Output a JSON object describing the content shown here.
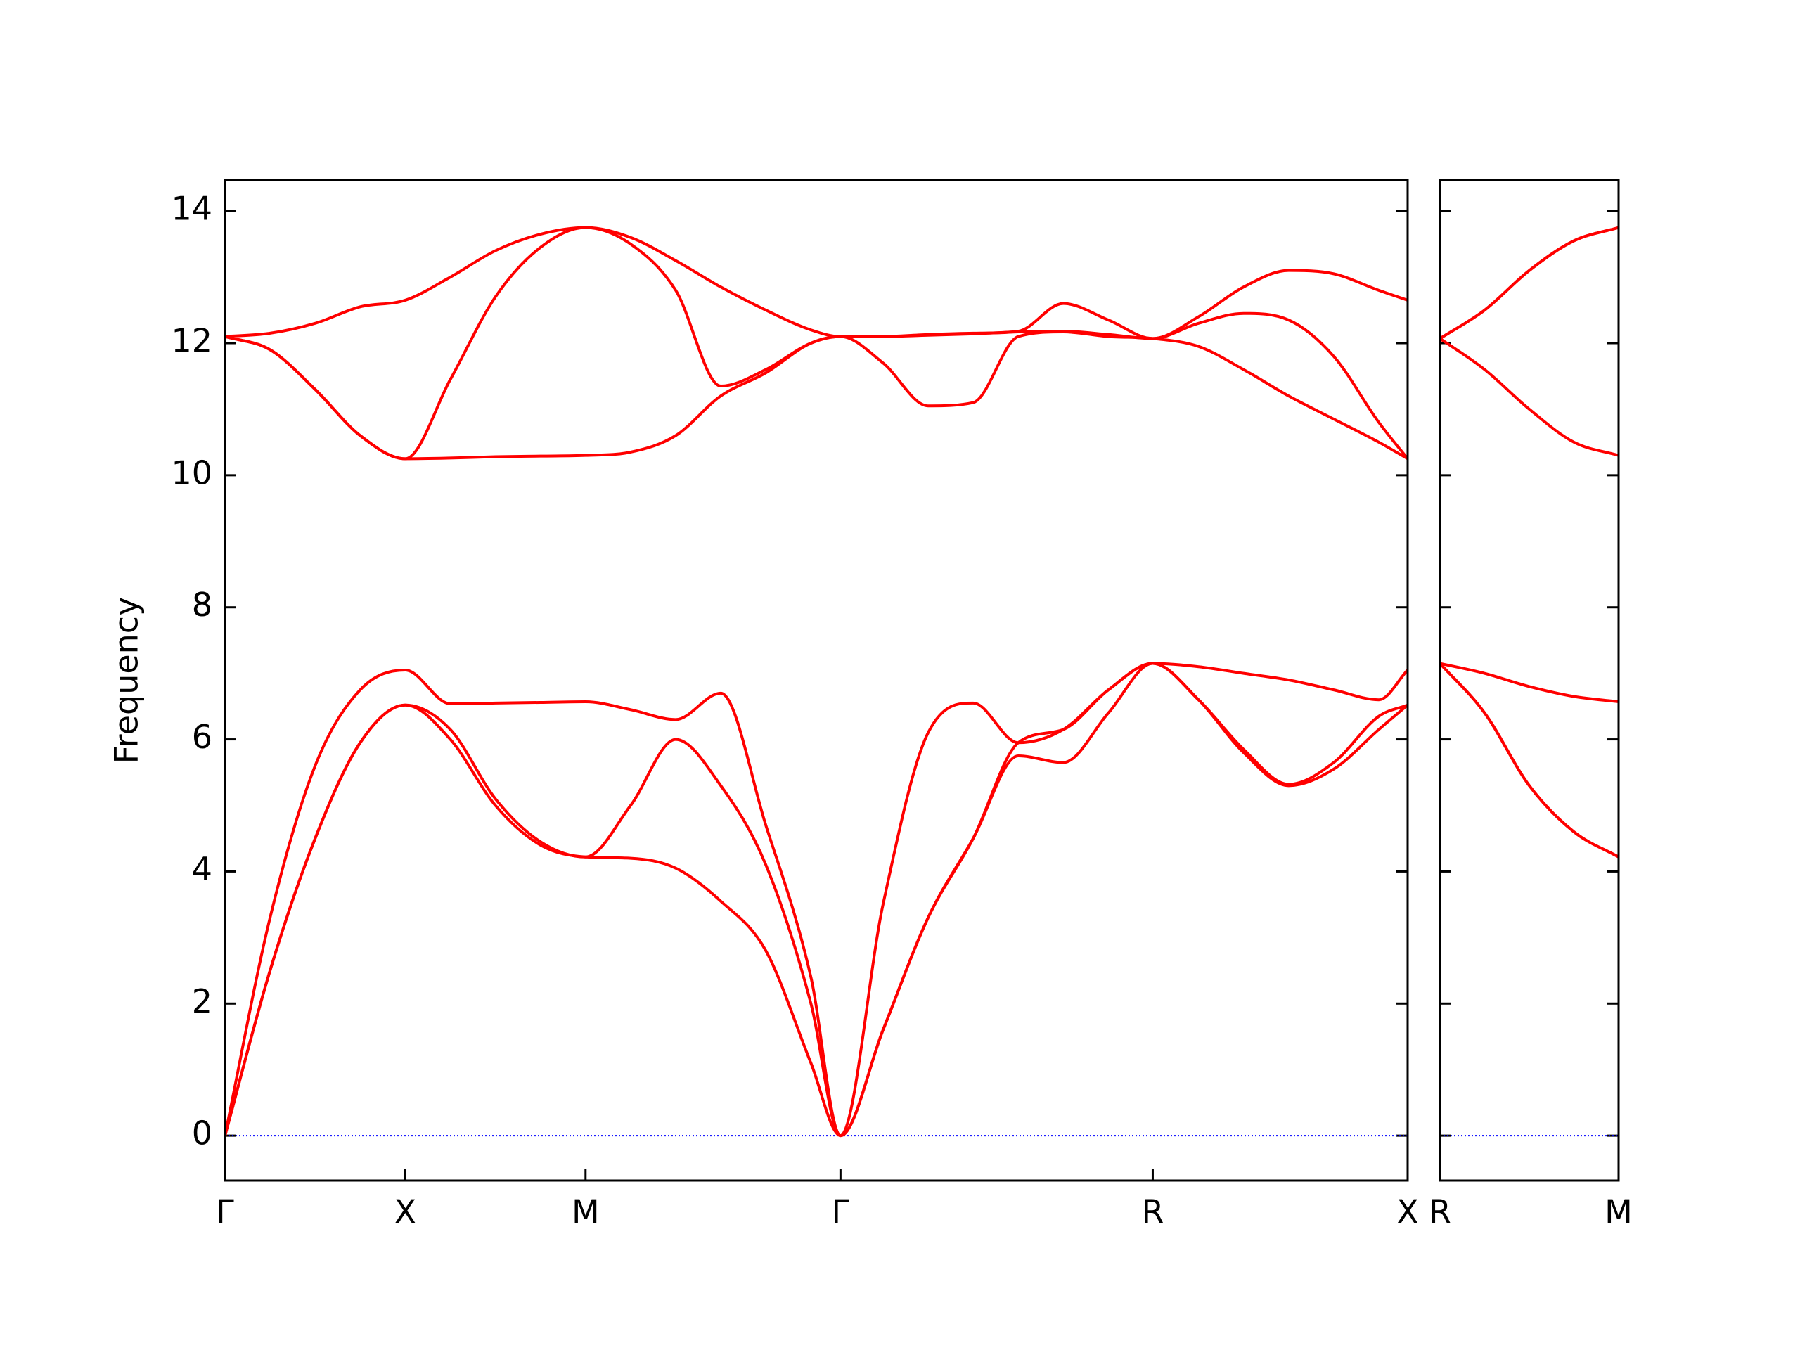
{
  "chart_data": [
    {
      "type": "line",
      "ylabel": "Frequency",
      "x": [
        0,
        0.25,
        0.5,
        0.75,
        1,
        1.25,
        1.5,
        1.75,
        2,
        2.25,
        2.5,
        2.75,
        3,
        3.25,
        3.414,
        3.65,
        3.9,
        4.15,
        4.4,
        4.65,
        4.9,
        5.146,
        5.4,
        5.65,
        5.9,
        6.15,
        6.4,
        6.56
      ],
      "xlim": [
        0,
        6.56
      ],
      "xticks": [
        {
          "value": 0,
          "label": "Γ"
        },
        {
          "value": 1,
          "label": "X"
        },
        {
          "value": 2,
          "label": "M"
        },
        {
          "value": 3.414,
          "label": "Γ"
        },
        {
          "value": 5.146,
          "label": "R"
        },
        {
          "value": 6.56,
          "label": "X"
        }
      ],
      "ylim": [
        -0.68,
        14.47
      ],
      "yticks": [
        0,
        2,
        4,
        6,
        8,
        10,
        12,
        14
      ],
      "show_ytick_labels": true,
      "hline": 0,
      "hline_color": "#0000ff",
      "series": [
        {
          "color": "#ff0000",
          "values": [
            0,
            2.5,
            4.5,
            5.95,
            6.52,
            6.0,
            5.0,
            4.4,
            4.22,
            4.2,
            4.05,
            3.55,
            2.8,
            1.1,
            0,
            1.6,
            3.3,
            4.5,
            5.75,
            5.65,
            6.4,
            7.15,
            6.6,
            5.8,
            5.3,
            5.55,
            6.15,
            6.52
          ]
        },
        {
          "color": "#ff0000",
          "values": [
            0,
            2.5,
            4.5,
            5.95,
            6.52,
            6.15,
            5.1,
            4.45,
            4.22,
            5.0,
            6.0,
            5.3,
            4.1,
            2.0,
            0,
            1.6,
            3.3,
            4.5,
            5.95,
            6.15,
            6.75,
            7.15,
            6.6,
            5.85,
            5.32,
            5.65,
            6.35,
            6.52
          ]
        },
        {
          "color": "#ff0000",
          "values": [
            0,
            3.3,
            5.6,
            6.75,
            7.05,
            6.54,
            6.55,
            6.56,
            6.57,
            6.45,
            6.3,
            6.7,
            4.7,
            2.4,
            0,
            3.5,
            6.1,
            6.55,
            5.95,
            6.15,
            6.75,
            7.15,
            7.1,
            7.0,
            6.9,
            6.75,
            6.6,
            7.05
          ]
        },
        {
          "color": "#ff0000",
          "values": [
            12.1,
            11.9,
            11.3,
            10.6,
            10.25,
            10.26,
            10.28,
            10.29,
            10.3,
            10.35,
            10.6,
            11.2,
            11.55,
            12.0,
            12.1,
            11.7,
            11.05,
            11.1,
            12.1,
            12.17,
            12.1,
            12.07,
            11.95,
            11.6,
            11.2,
            10.85,
            10.5,
            10.25
          ]
        },
        {
          "color": "#ff0000",
          "values": [
            12.1,
            11.9,
            11.3,
            10.6,
            10.25,
            11.45,
            12.7,
            13.45,
            13.75,
            13.5,
            12.8,
            11.35,
            11.6,
            12.0,
            12.1,
            12.1,
            12.12,
            12.14,
            12.17,
            12.18,
            12.13,
            12.07,
            12.3,
            12.45,
            12.35,
            11.8,
            10.8,
            10.25
          ]
        },
        {
          "color": "#ff0000",
          "values": [
            12.1,
            12.15,
            12.3,
            12.55,
            12.65,
            13.0,
            13.4,
            13.65,
            13.75,
            13.6,
            13.25,
            12.85,
            12.5,
            12.2,
            12.1,
            12.1,
            12.13,
            12.15,
            12.18,
            12.6,
            12.35,
            12.07,
            12.4,
            12.85,
            13.1,
            13.05,
            12.8,
            12.65
          ]
        }
      ]
    },
    {
      "type": "line",
      "x": [
        0,
        0.25,
        0.5,
        0.75,
        1
      ],
      "xlim": [
        0,
        1
      ],
      "xticks": [
        {
          "value": 0,
          "label": "R"
        },
        {
          "value": 1,
          "label": "M"
        }
      ],
      "ylim": [
        -0.68,
        14.47
      ],
      "yticks": [
        0,
        2,
        4,
        6,
        8,
        10,
        12,
        14
      ],
      "show_ytick_labels": false,
      "hline": 0,
      "hline_color": "#0000ff",
      "series": [
        {
          "color": "#ff0000",
          "values": [
            7.15,
            6.4,
            5.3,
            4.6,
            4.22
          ]
        },
        {
          "color": "#ff0000",
          "values": [
            7.15,
            6.4,
            5.3,
            4.6,
            4.22
          ]
        },
        {
          "color": "#ff0000",
          "values": [
            7.15,
            7.0,
            6.8,
            6.65,
            6.57
          ]
        },
        {
          "color": "#ff0000",
          "values": [
            12.07,
            11.6,
            11.0,
            10.5,
            10.3
          ]
        },
        {
          "color": "#ff0000",
          "values": [
            12.07,
            12.5,
            13.1,
            13.55,
            13.75
          ]
        },
        {
          "color": "#ff0000",
          "values": [
            12.07,
            12.5,
            13.1,
            13.55,
            13.75
          ]
        }
      ]
    }
  ]
}
